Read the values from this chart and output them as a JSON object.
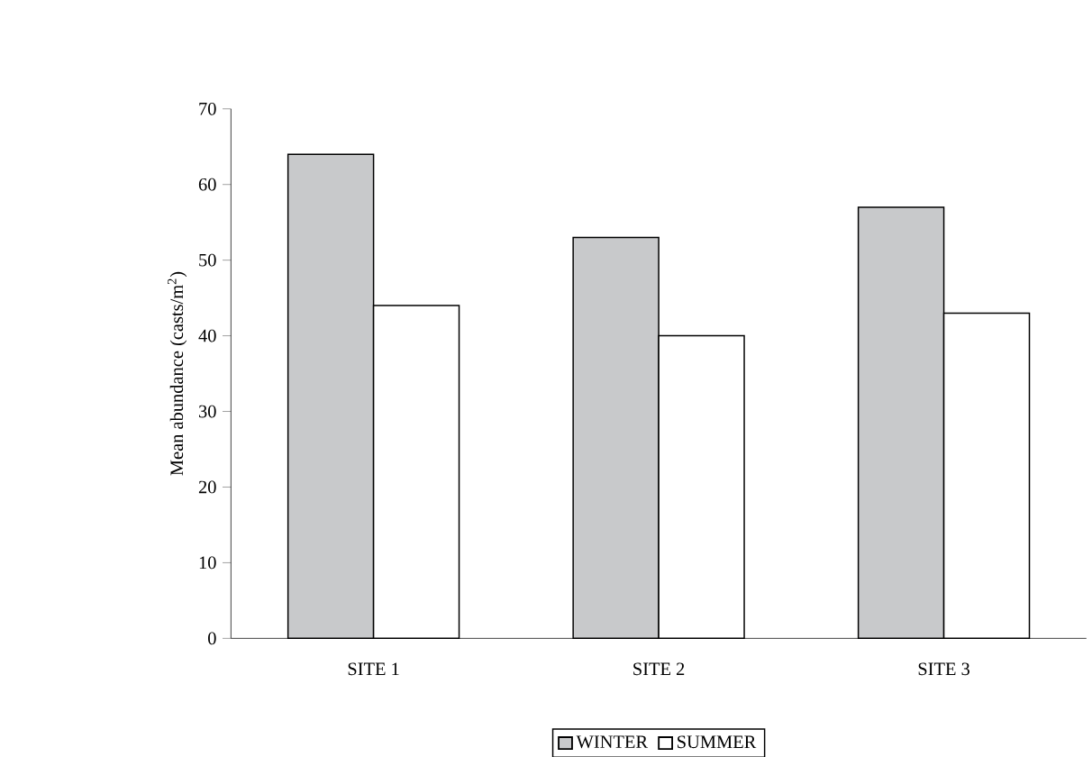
{
  "chart_data": {
    "type": "bar",
    "ylabel": "Mean abundance (casts/m$^{2}$)",
    "categories": [
      "SITE 1",
      "SITE 2",
      "SITE 3"
    ],
    "series": [
      {
        "name": "WINTER",
        "color": "#c8c9cb",
        "values": [
          64,
          53,
          57
        ]
      },
      {
        "name": "SUMMER",
        "color": "#ffffff",
        "values": [
          44,
          40,
          43
        ]
      }
    ],
    "ylim": [
      0,
      70
    ],
    "yticks": [
      0,
      10,
      20,
      30,
      40,
      50,
      60,
      70
    ],
    "grid": false,
    "legend": "bottom"
  }
}
